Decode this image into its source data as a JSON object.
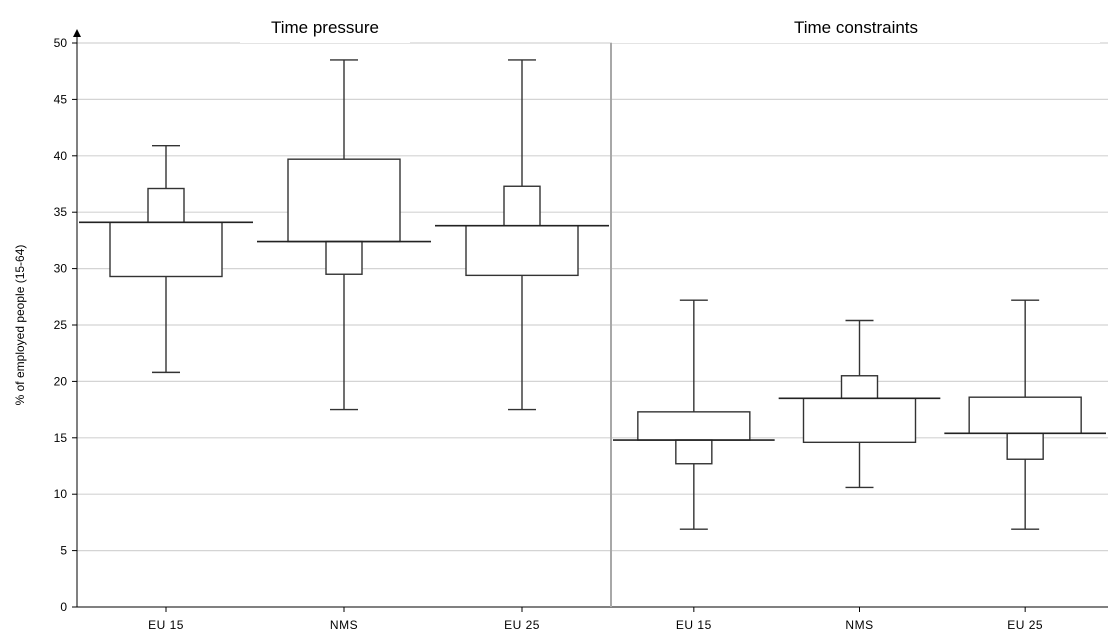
{
  "chart_data": {
    "type": "box",
    "ylabel": "% of employed people (15-64)",
    "ylim": [
      0,
      50
    ],
    "yticks": [
      0,
      5,
      10,
      15,
      20,
      25,
      30,
      35,
      40,
      45,
      50
    ],
    "grid": true,
    "panels": [
      {
        "title": "Time pressure",
        "categories": [
          "EU 15",
          "NMS",
          "EU 25"
        ],
        "boxes": [
          {
            "min": 20.8,
            "q1": 29.3,
            "median": 34.1,
            "q3": 37.1,
            "max": 40.9
          },
          {
            "min": 17.5,
            "q1": 29.5,
            "median": 32.4,
            "q3": 39.7,
            "max": 48.5
          },
          {
            "min": 17.5,
            "q1": 29.4,
            "median": 33.8,
            "q3": 37.3,
            "max": 48.5
          }
        ]
      },
      {
        "title": "Time constraints",
        "categories": [
          "EU 15",
          "NMS",
          "EU 25"
        ],
        "boxes": [
          {
            "min": 6.9,
            "q1": 12.7,
            "median": 14.8,
            "q3": 17.3,
            "max": 27.2
          },
          {
            "min": 10.6,
            "q1": 14.6,
            "median": 18.5,
            "q3": 20.5,
            "max": 25.4
          },
          {
            "min": 6.9,
            "q1": 13.1,
            "median": 15.4,
            "q3": 18.6,
            "max": 27.2
          }
        ]
      }
    ]
  }
}
